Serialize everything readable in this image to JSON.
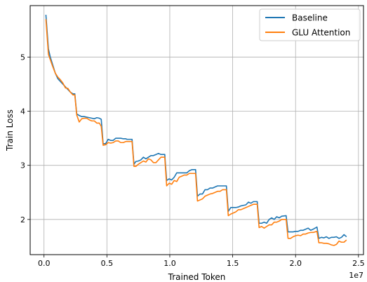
{
  "chart_data": {
    "type": "line",
    "xlabel": "Trained Token",
    "ylabel": "Train Loss",
    "x_scale_label": "1e7",
    "xlim": [
      -1100000,
      25400000
    ],
    "ylim": [
      1.35,
      5.95
    ],
    "xticks": [
      0,
      5000000,
      10000000,
      15000000,
      20000000,
      25000000
    ],
    "xtick_labels": [
      "0.0",
      "0.5",
      "1.0",
      "1.5",
      "2.0",
      "2.5"
    ],
    "yticks": [
      2,
      3,
      4,
      5
    ],
    "ytick_labels": [
      "2",
      "3",
      "4",
      "5"
    ],
    "grid": true,
    "legend_position": "top-right",
    "series": [
      {
        "name": "Baseline",
        "color": "#1f77b4",
        "points": [
          [
            150000,
            5.78
          ],
          [
            350000,
            5.15
          ],
          [
            500000,
            5.0
          ],
          [
            700000,
            4.85
          ],
          [
            900000,
            4.7
          ],
          [
            1100000,
            4.6
          ],
          [
            1300000,
            4.55
          ],
          [
            1500000,
            4.5
          ],
          [
            1700000,
            4.45
          ],
          [
            1900000,
            4.4
          ],
          [
            2100000,
            4.35
          ],
          [
            2300000,
            4.32
          ],
          [
            2450000,
            4.32
          ],
          [
            2600000,
            3.95
          ],
          [
            2800000,
            3.92
          ],
          [
            3000000,
            3.9
          ],
          [
            3200000,
            3.9
          ],
          [
            3400000,
            3.89
          ],
          [
            3600000,
            3.88
          ],
          [
            3800000,
            3.87
          ],
          [
            4000000,
            3.86
          ],
          [
            4200000,
            3.88
          ],
          [
            4400000,
            3.87
          ],
          [
            4550000,
            3.85
          ],
          [
            4700000,
            3.4
          ],
          [
            4900000,
            3.4
          ],
          [
            5100000,
            3.48
          ],
          [
            5300000,
            3.46
          ],
          [
            5500000,
            3.46
          ],
          [
            5700000,
            3.5
          ],
          [
            5900000,
            3.5
          ],
          [
            6100000,
            3.5
          ],
          [
            6300000,
            3.49
          ],
          [
            6500000,
            3.49
          ],
          [
            6600000,
            3.48
          ],
          [
            7000000,
            3.48
          ],
          [
            7150000,
            3.02
          ],
          [
            7300000,
            3.07
          ],
          [
            7500000,
            3.08
          ],
          [
            7700000,
            3.1
          ],
          [
            7900000,
            3.15
          ],
          [
            8100000,
            3.12
          ],
          [
            8300000,
            3.15
          ],
          [
            8500000,
            3.18
          ],
          [
            8700000,
            3.18
          ],
          [
            8900000,
            3.2
          ],
          [
            9100000,
            3.22
          ],
          [
            9300000,
            3.2
          ],
          [
            9600000,
            3.2
          ],
          [
            9750000,
            2.72
          ],
          [
            9950000,
            2.75
          ],
          [
            10150000,
            2.73
          ],
          [
            10350000,
            2.78
          ],
          [
            10550000,
            2.86
          ],
          [
            10750000,
            2.86
          ],
          [
            10950000,
            2.86
          ],
          [
            11150000,
            2.86
          ],
          [
            11350000,
            2.86
          ],
          [
            11550000,
            2.9
          ],
          [
            11750000,
            2.92
          ],
          [
            12050000,
            2.92
          ],
          [
            12200000,
            2.43
          ],
          [
            12400000,
            2.47
          ],
          [
            12600000,
            2.47
          ],
          [
            12800000,
            2.55
          ],
          [
            13000000,
            2.55
          ],
          [
            13200000,
            2.58
          ],
          [
            13400000,
            2.58
          ],
          [
            13600000,
            2.6
          ],
          [
            13800000,
            2.62
          ],
          [
            14000000,
            2.62
          ],
          [
            14200000,
            2.62
          ],
          [
            14500000,
            2.62
          ],
          [
            14650000,
            2.15
          ],
          [
            14850000,
            2.22
          ],
          [
            15050000,
            2.22
          ],
          [
            15250000,
            2.22
          ],
          [
            15450000,
            2.23
          ],
          [
            15650000,
            2.25
          ],
          [
            15850000,
            2.26
          ],
          [
            16050000,
            2.27
          ],
          [
            16250000,
            2.32
          ],
          [
            16450000,
            2.3
          ],
          [
            16650000,
            2.33
          ],
          [
            16950000,
            2.33
          ],
          [
            17100000,
            1.93
          ],
          [
            17300000,
            1.93
          ],
          [
            17500000,
            1.95
          ],
          [
            17700000,
            1.93
          ],
          [
            17900000,
            2.0
          ],
          [
            18100000,
            2.03
          ],
          [
            18300000,
            2.0
          ],
          [
            18500000,
            2.05
          ],
          [
            18700000,
            2.03
          ],
          [
            18900000,
            2.06
          ],
          [
            19250000,
            2.07
          ],
          [
            19400000,
            1.77
          ],
          [
            19600000,
            1.77
          ],
          [
            19800000,
            1.77
          ],
          [
            20000000,
            1.78
          ],
          [
            20200000,
            1.78
          ],
          [
            20400000,
            1.8
          ],
          [
            20600000,
            1.8
          ],
          [
            20800000,
            1.82
          ],
          [
            21000000,
            1.84
          ],
          [
            21200000,
            1.8
          ],
          [
            21400000,
            1.82
          ],
          [
            21700000,
            1.86
          ],
          [
            21850000,
            1.65
          ],
          [
            22050000,
            1.67
          ],
          [
            22250000,
            1.66
          ],
          [
            22450000,
            1.68
          ],
          [
            22650000,
            1.65
          ],
          [
            22850000,
            1.67
          ],
          [
            23050000,
            1.67
          ],
          [
            23250000,
            1.68
          ],
          [
            23450000,
            1.65
          ],
          [
            23650000,
            1.67
          ],
          [
            23850000,
            1.72
          ],
          [
            24050000,
            1.68
          ]
        ]
      },
      {
        "name": "GLU Attention",
        "color": "#ff7f0e",
        "points": [
          [
            150000,
            5.7
          ],
          [
            350000,
            5.05
          ],
          [
            500000,
            4.95
          ],
          [
            700000,
            4.82
          ],
          [
            900000,
            4.7
          ],
          [
            1100000,
            4.63
          ],
          [
            1300000,
            4.58
          ],
          [
            1500000,
            4.52
          ],
          [
            1700000,
            4.43
          ],
          [
            1900000,
            4.42
          ],
          [
            2100000,
            4.35
          ],
          [
            2300000,
            4.3
          ],
          [
            2450000,
            4.3
          ],
          [
            2600000,
            3.93
          ],
          [
            2800000,
            3.8
          ],
          [
            3000000,
            3.86
          ],
          [
            3200000,
            3.87
          ],
          [
            3400000,
            3.87
          ],
          [
            3600000,
            3.84
          ],
          [
            3800000,
            3.82
          ],
          [
            4000000,
            3.82
          ],
          [
            4200000,
            3.78
          ],
          [
            4400000,
            3.78
          ],
          [
            4550000,
            3.72
          ],
          [
            4700000,
            3.37
          ],
          [
            4900000,
            3.38
          ],
          [
            5100000,
            3.42
          ],
          [
            5300000,
            3.41
          ],
          [
            5500000,
            3.42
          ],
          [
            5700000,
            3.45
          ],
          [
            5900000,
            3.45
          ],
          [
            6100000,
            3.42
          ],
          [
            6300000,
            3.42
          ],
          [
            6500000,
            3.44
          ],
          [
            6700000,
            3.44
          ],
          [
            7000000,
            3.44
          ],
          [
            7150000,
            2.98
          ],
          [
            7300000,
            2.98
          ],
          [
            7500000,
            3.02
          ],
          [
            7700000,
            3.05
          ],
          [
            7900000,
            3.08
          ],
          [
            8100000,
            3.06
          ],
          [
            8300000,
            3.12
          ],
          [
            8500000,
            3.1
          ],
          [
            8700000,
            3.05
          ],
          [
            8900000,
            3.05
          ],
          [
            9100000,
            3.1
          ],
          [
            9300000,
            3.15
          ],
          [
            9600000,
            3.15
          ],
          [
            9750000,
            2.62
          ],
          [
            9950000,
            2.67
          ],
          [
            10150000,
            2.65
          ],
          [
            10350000,
            2.72
          ],
          [
            10550000,
            2.7
          ],
          [
            10750000,
            2.78
          ],
          [
            10950000,
            2.8
          ],
          [
            11150000,
            2.82
          ],
          [
            11350000,
            2.82
          ],
          [
            11550000,
            2.85
          ],
          [
            11750000,
            2.85
          ],
          [
            12050000,
            2.85
          ],
          [
            12200000,
            2.34
          ],
          [
            12400000,
            2.36
          ],
          [
            12600000,
            2.38
          ],
          [
            12800000,
            2.43
          ],
          [
            13000000,
            2.45
          ],
          [
            13200000,
            2.47
          ],
          [
            13400000,
            2.48
          ],
          [
            13600000,
            2.5
          ],
          [
            13800000,
            2.52
          ],
          [
            14000000,
            2.52
          ],
          [
            14200000,
            2.55
          ],
          [
            14500000,
            2.55
          ],
          [
            14650000,
            2.07
          ],
          [
            14850000,
            2.1
          ],
          [
            15050000,
            2.12
          ],
          [
            15250000,
            2.14
          ],
          [
            15450000,
            2.18
          ],
          [
            15650000,
            2.18
          ],
          [
            15850000,
            2.2
          ],
          [
            16050000,
            2.22
          ],
          [
            16250000,
            2.24
          ],
          [
            16450000,
            2.26
          ],
          [
            16650000,
            2.28
          ],
          [
            16950000,
            2.28
          ],
          [
            17100000,
            1.85
          ],
          [
            17300000,
            1.87
          ],
          [
            17500000,
            1.84
          ],
          [
            17700000,
            1.87
          ],
          [
            17900000,
            1.9
          ],
          [
            18100000,
            1.9
          ],
          [
            18300000,
            1.95
          ],
          [
            18500000,
            1.95
          ],
          [
            18700000,
            1.97
          ],
          [
            18900000,
            2.0
          ],
          [
            19250000,
            2.0
          ],
          [
            19400000,
            1.65
          ],
          [
            19600000,
            1.65
          ],
          [
            19800000,
            1.68
          ],
          [
            20000000,
            1.7
          ],
          [
            20200000,
            1.71
          ],
          [
            20400000,
            1.7
          ],
          [
            20600000,
            1.73
          ],
          [
            20800000,
            1.73
          ],
          [
            21000000,
            1.75
          ],
          [
            21200000,
            1.76
          ],
          [
            21400000,
            1.76
          ],
          [
            21700000,
            1.78
          ],
          [
            21850000,
            1.57
          ],
          [
            22050000,
            1.57
          ],
          [
            22250000,
            1.56
          ],
          [
            22450000,
            1.56
          ],
          [
            22650000,
            1.55
          ],
          [
            22850000,
            1.53
          ],
          [
            23050000,
            1.52
          ],
          [
            23250000,
            1.54
          ],
          [
            23450000,
            1.6
          ],
          [
            23650000,
            1.58
          ],
          [
            23850000,
            1.58
          ],
          [
            24050000,
            1.62
          ]
        ]
      }
    ]
  }
}
